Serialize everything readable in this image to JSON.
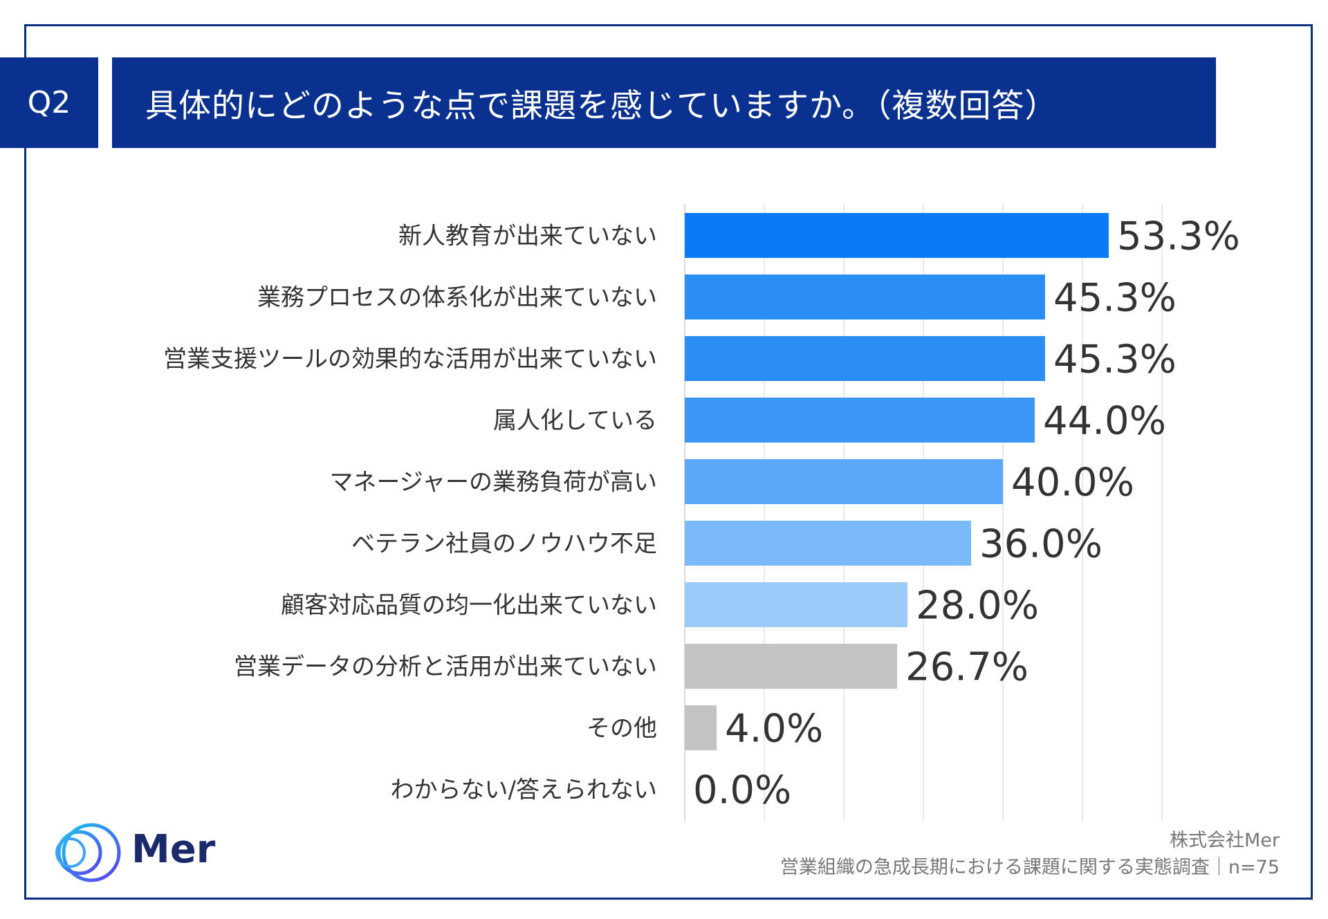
{
  "question": {
    "number": "Q2",
    "title": "具体的にどのような点で課題を感じていますか。（複数回答）"
  },
  "chart_data": {
    "type": "bar",
    "orientation": "horizontal",
    "title": "具体的にどのような点で課題を感じていますか。（複数回答）",
    "unit": "%",
    "xlim": [
      0,
      60
    ],
    "grid": true,
    "categories": [
      "新人教育が出来ていない",
      "業務プロセスの体系化が出来ていない",
      "営業支援ツールの効果的な活用が出来ていない",
      "属人化している",
      "マネージャーの業務負荷が高い",
      "ベテラン社員のノウハウ不足",
      "顧客対応品質の均一化出来ていない",
      "営業データの分析と活用が出来ていない",
      "その他",
      "わからない/答えられない"
    ],
    "values": [
      53.3,
      45.3,
      45.3,
      44.0,
      40.0,
      36.0,
      28.0,
      26.7,
      4.0,
      0.0
    ],
    "value_labels": [
      "53.3%",
      "45.3%",
      "45.3%",
      "44.0%",
      "40.0%",
      "36.0%",
      "28.0%",
      "26.7%",
      "4.0%",
      "0.0%"
    ],
    "colors": [
      "#0a7bf5",
      "#2b8ef5",
      "#2b8ef5",
      "#3b96f5",
      "#5aa8f7",
      "#7bbaf8",
      "#9ccbfa",
      "#c3c3c3",
      "#c3c3c3",
      "#c3c3c3"
    ]
  },
  "footer": {
    "company": "株式会社Mer",
    "survey": "営業組織の急成長期における課題に関する実態調査｜n=75"
  },
  "logo": {
    "text": "Mer",
    "icon": "mer-rings-logo-icon"
  }
}
